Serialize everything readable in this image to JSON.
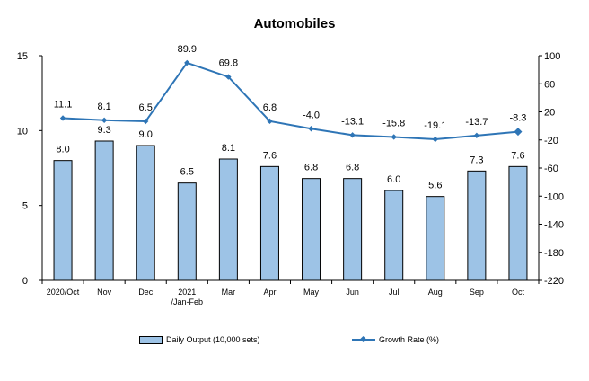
{
  "chart_data": {
    "type": "bar",
    "title": "Automobiles",
    "categories": [
      "2020/Oct",
      "Nov",
      "Dec",
      "2021\n/Jan-Feb",
      "Mar",
      "Apr",
      "May",
      "Jun",
      "Jul",
      "Aug",
      "Sep",
      "Oct"
    ],
    "series": [
      {
        "name": "Daily Output (10,000 sets)",
        "type": "bar",
        "axis": "left",
        "values": [
          8.0,
          9.3,
          9.0,
          6.5,
          8.1,
          7.6,
          6.8,
          6.8,
          6.0,
          5.6,
          7.3,
          7.6
        ],
        "labels": [
          "8.0",
          "9.3",
          "9.0",
          "6.5",
          "8.1",
          "7.6",
          "6.8",
          "6.8",
          "6.0",
          "5.6",
          "7.3",
          "7.6"
        ]
      },
      {
        "name": "Growth Rate (%)",
        "type": "line",
        "axis": "right",
        "values": [
          11.1,
          8.1,
          6.5,
          89.9,
          69.8,
          6.8,
          -4.0,
          -13.1,
          -15.8,
          -19.1,
          -13.7,
          -8.3
        ],
        "labels": [
          "11.1",
          "8.1",
          "6.5",
          "89.9",
          "69.8",
          "6.8",
          "-4.0",
          "-13.1",
          "-15.8",
          "-19.1",
          "-13.7",
          "-8.3"
        ]
      }
    ],
    "y_left": {
      "min": 0,
      "max": 15,
      "ticks": [
        0,
        5,
        10,
        15
      ]
    },
    "y_right": {
      "min": -220,
      "max": 100,
      "ticks": [
        -220,
        -180,
        -140,
        -100,
        -60,
        -20,
        20,
        60,
        100
      ]
    },
    "grid": false,
    "legend_position": "bottom",
    "colors": {
      "bar": "#9dc3e6",
      "bar_edge": "#000000",
      "line": "#2e75b6"
    }
  }
}
